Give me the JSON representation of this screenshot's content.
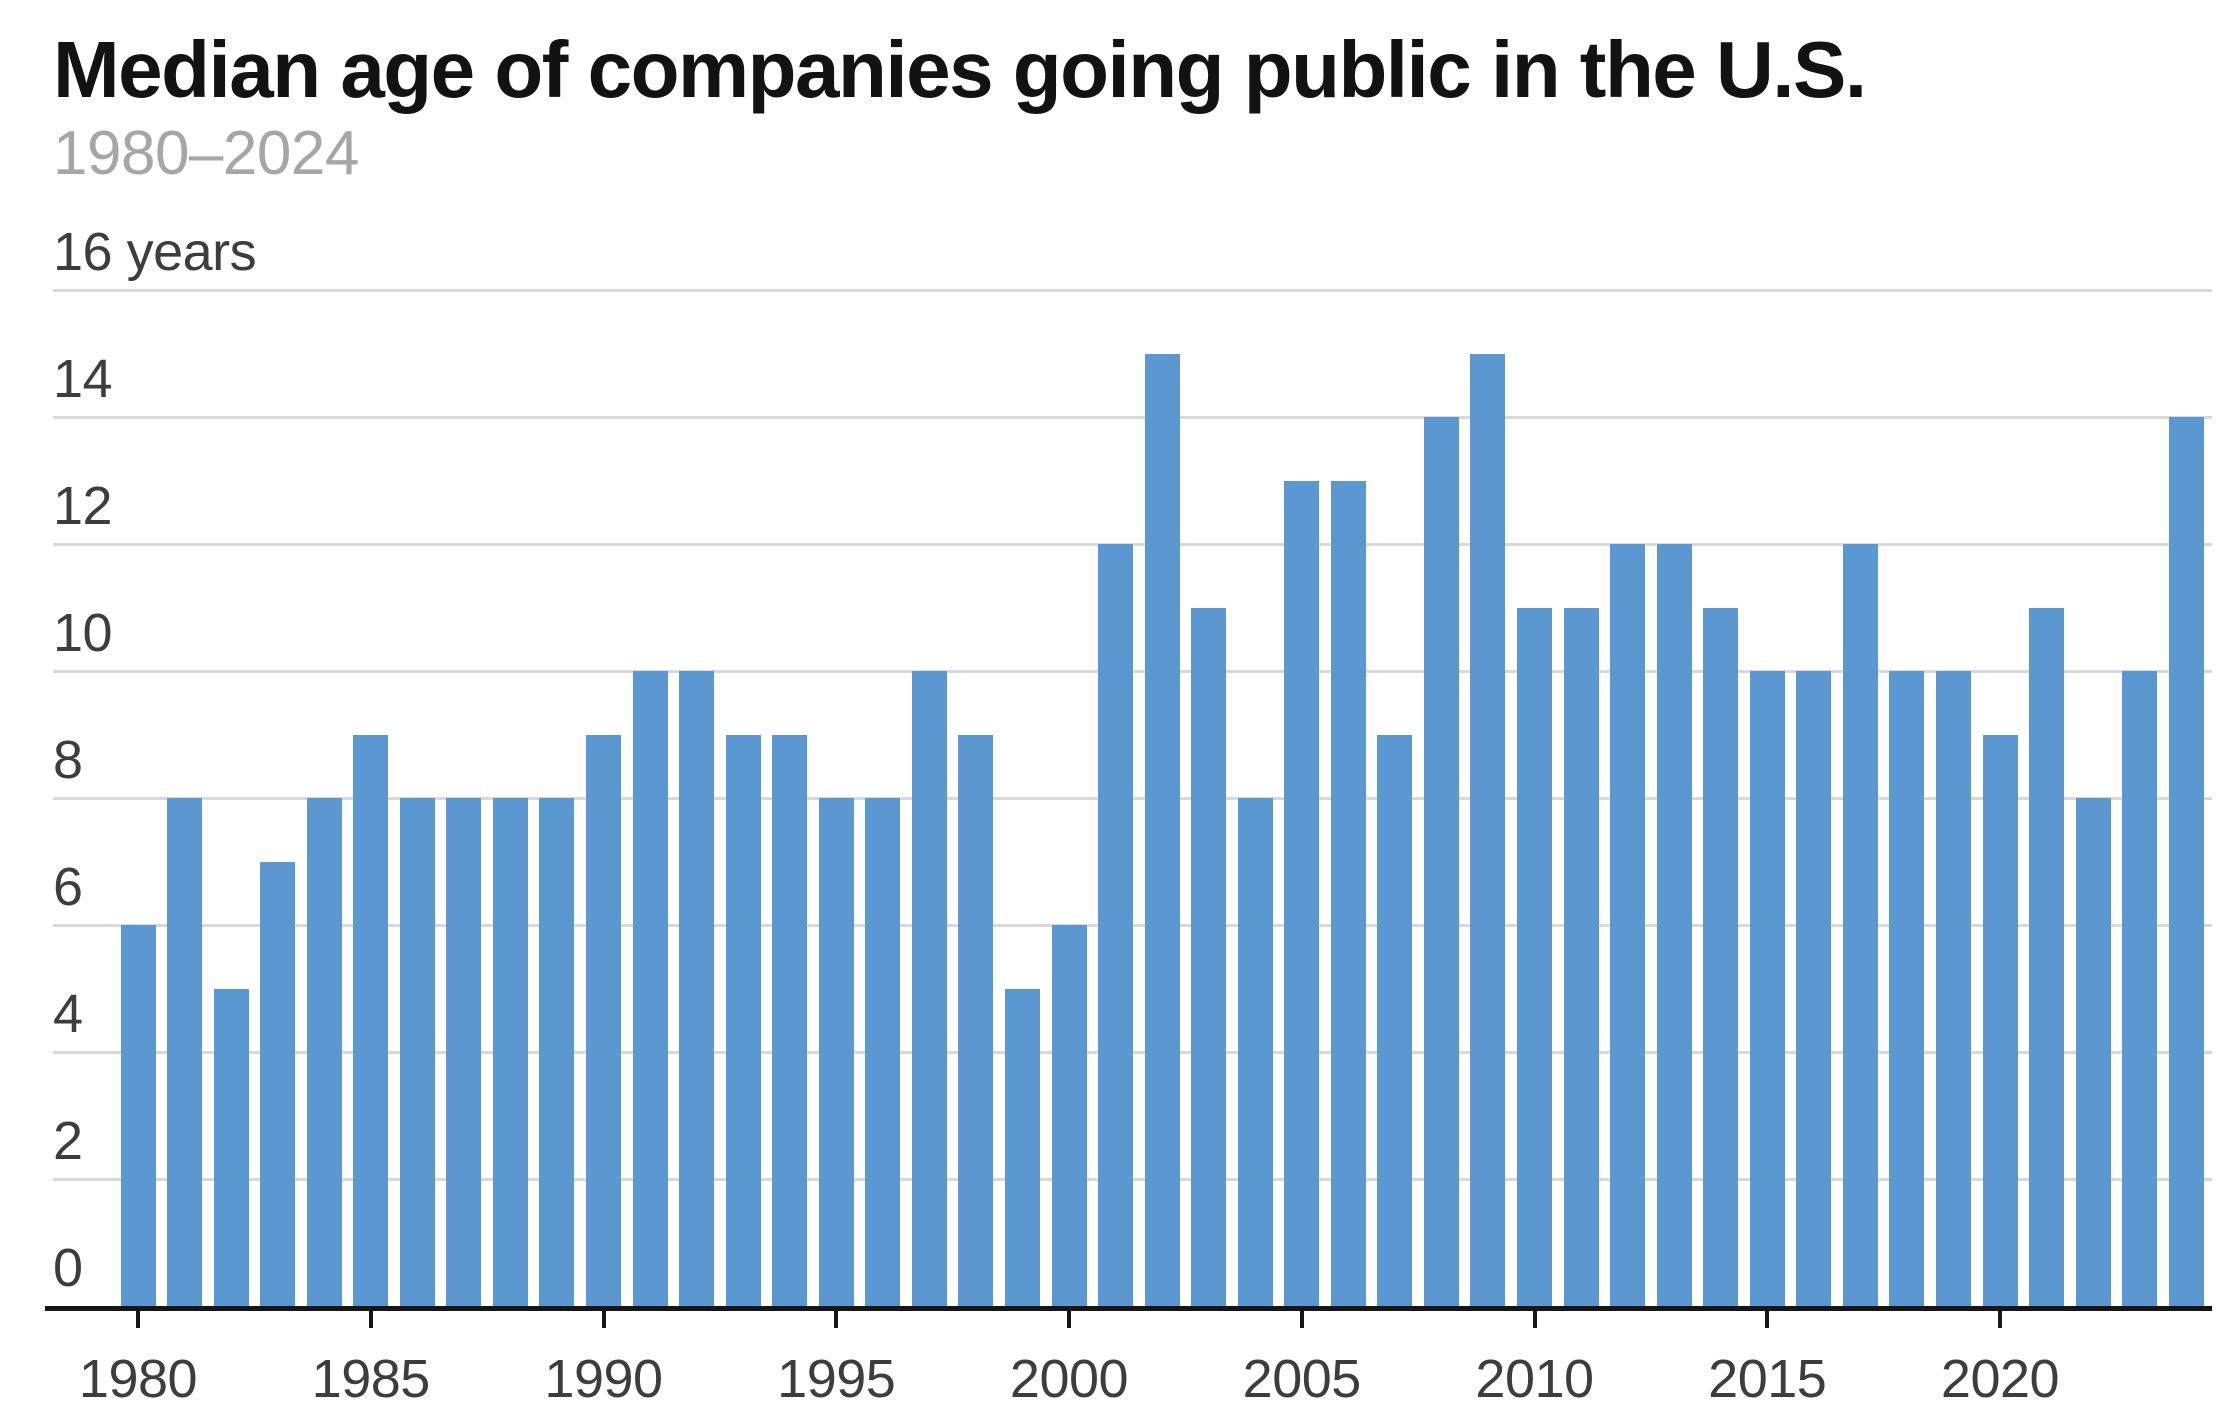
{
  "header": {
    "title": "Median age of companies going public in the U.S.",
    "subtitle": "1980–2024"
  },
  "chart_data": {
    "type": "bar",
    "title": "Median age of companies going public in the U.S.",
    "subtitle": "1980–2024",
    "unit_label": "years",
    "x": [
      1980,
      1981,
      1982,
      1983,
      1984,
      1985,
      1986,
      1987,
      1988,
      1989,
      1990,
      1991,
      1992,
      1993,
      1994,
      1995,
      1996,
      1997,
      1998,
      1999,
      2000,
      2001,
      2002,
      2003,
      2004,
      2005,
      2006,
      2007,
      2008,
      2009,
      2010,
      2011,
      2012,
      2013,
      2014,
      2015,
      2016,
      2017,
      2018,
      2019,
      2020,
      2021,
      2022,
      2023,
      2024
    ],
    "values": [
      6,
      8,
      5,
      7,
      8,
      9,
      8,
      8,
      8,
      8,
      9,
      10,
      10,
      9,
      9,
      8,
      8,
      10,
      9,
      5,
      6,
      12,
      15,
      11,
      8,
      13,
      13,
      9,
      14,
      15,
      11,
      11,
      12,
      12,
      11,
      10,
      10,
      12,
      10,
      10,
      9,
      11,
      8,
      10,
      14
    ],
    "y_axis": {
      "max": 16,
      "min": 0,
      "tick_values": [
        16,
        14,
        12,
        10,
        8,
        6,
        4,
        2,
        0
      ],
      "tick_labels": [
        "16 years",
        "14",
        "12",
        "10",
        "8",
        "6",
        "4",
        "2",
        "0"
      ]
    },
    "x_axis": {
      "tick_years": [
        1980,
        1985,
        1990,
        1995,
        2000,
        2005,
        2010,
        2015,
        2020
      ]
    },
    "legend": null,
    "grid": true,
    "colors": {
      "bar": "#5b97d1",
      "gridline": "#d9d9d9",
      "axis": "#161616",
      "title": "#121212",
      "subtitle": "#a6a6a6",
      "tick_label": "#3d3d3d",
      "background": "#ffffff"
    }
  }
}
